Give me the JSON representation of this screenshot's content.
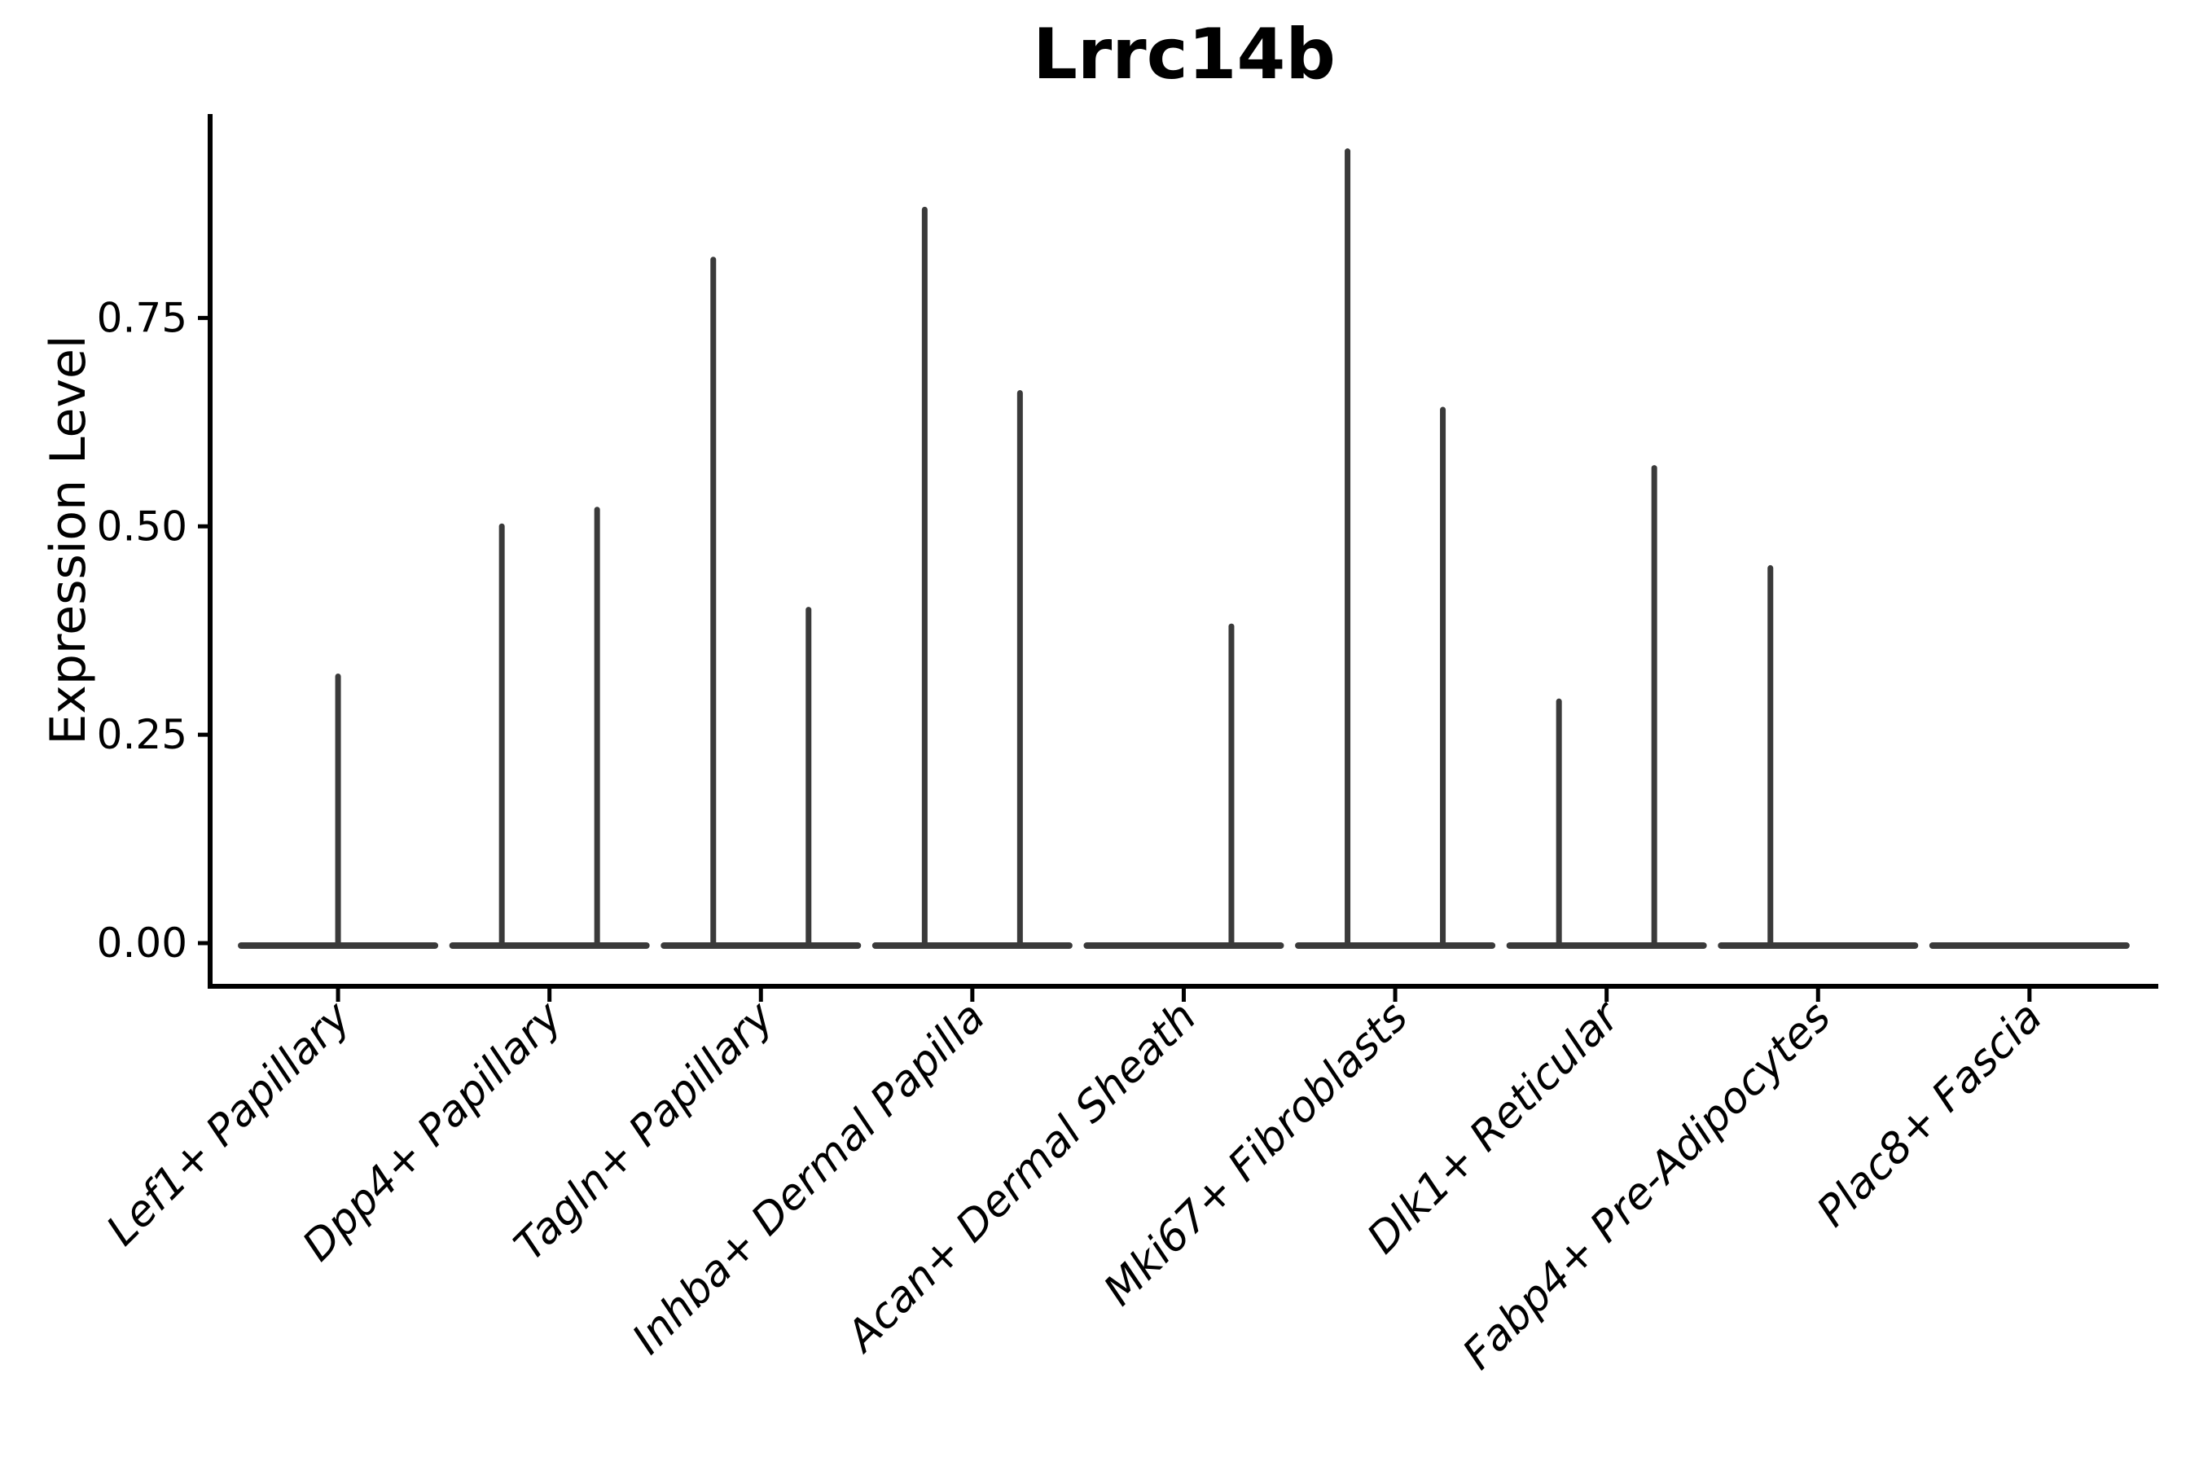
{
  "chart_data": {
    "type": "violin",
    "title": "Lrrc14b",
    "xlabel": "",
    "ylabel": "Expression Level",
    "legend_position": "none",
    "grid": false,
    "background": "#ffffff",
    "ylim": [
      -0.05,
      1.0
    ],
    "yticks": [
      {
        "value": 0.0,
        "label": "0.00"
      },
      {
        "value": 0.25,
        "label": "0.25"
      },
      {
        "value": 0.5,
        "label": "0.50"
      },
      {
        "value": 0.75,
        "label": "0.75"
      }
    ],
    "categories": [
      "Lef1+ Papillary",
      "Dpp4+ Papillary",
      "Tagln+ Papillary",
      "Inhba+ Dermal Papilla",
      "Acan+ Dermal Sheath",
      "Mki67+ Fibroblasts",
      "Dlk1+ Reticular",
      "Fabp4+ Pre-Adipocytes",
      "Plac8+ Fascia"
    ],
    "groups": [
      {
        "category": "Lef1+ Papillary",
        "baseline_value": 0,
        "violins": [
          {
            "position": "center",
            "max": 0.32
          }
        ]
      },
      {
        "category": "Dpp4+ Papillary",
        "baseline_value": 0,
        "violins": [
          {
            "position": "left",
            "max": 0.5
          },
          {
            "position": "right",
            "max": 0.52
          }
        ]
      },
      {
        "category": "Tagln+ Papillary",
        "baseline_value": 0,
        "violins": [
          {
            "position": "left",
            "max": 0.82
          },
          {
            "position": "right",
            "max": 0.4
          }
        ]
      },
      {
        "category": "Inhba+ Dermal Papilla",
        "baseline_value": 0,
        "violins": [
          {
            "position": "left",
            "max": 0.88
          },
          {
            "position": "right",
            "max": 0.66
          }
        ]
      },
      {
        "category": "Acan+ Dermal Sheath",
        "baseline_value": 0,
        "violins": [
          {
            "position": "right",
            "max": 0.38
          }
        ]
      },
      {
        "category": "Mki67+ Fibroblasts",
        "baseline_value": 0,
        "violins": [
          {
            "position": "left",
            "max": 0.95
          },
          {
            "position": "right",
            "max": 0.64
          }
        ]
      },
      {
        "category": "Dlk1+ Reticular",
        "baseline_value": 0,
        "violins": [
          {
            "position": "left",
            "max": 0.29
          },
          {
            "position": "right",
            "max": 0.57
          }
        ]
      },
      {
        "category": "Fabp4+ Pre-Adipocytes",
        "baseline_value": 0,
        "violins": [
          {
            "position": "left",
            "max": 0.45
          }
        ]
      },
      {
        "category": "Plac8+ Fascia",
        "baseline_value": 0,
        "violins": []
      }
    ],
    "colors": {
      "violin": "#3a3a3a",
      "axis": "#000000",
      "text": "#000000"
    }
  }
}
